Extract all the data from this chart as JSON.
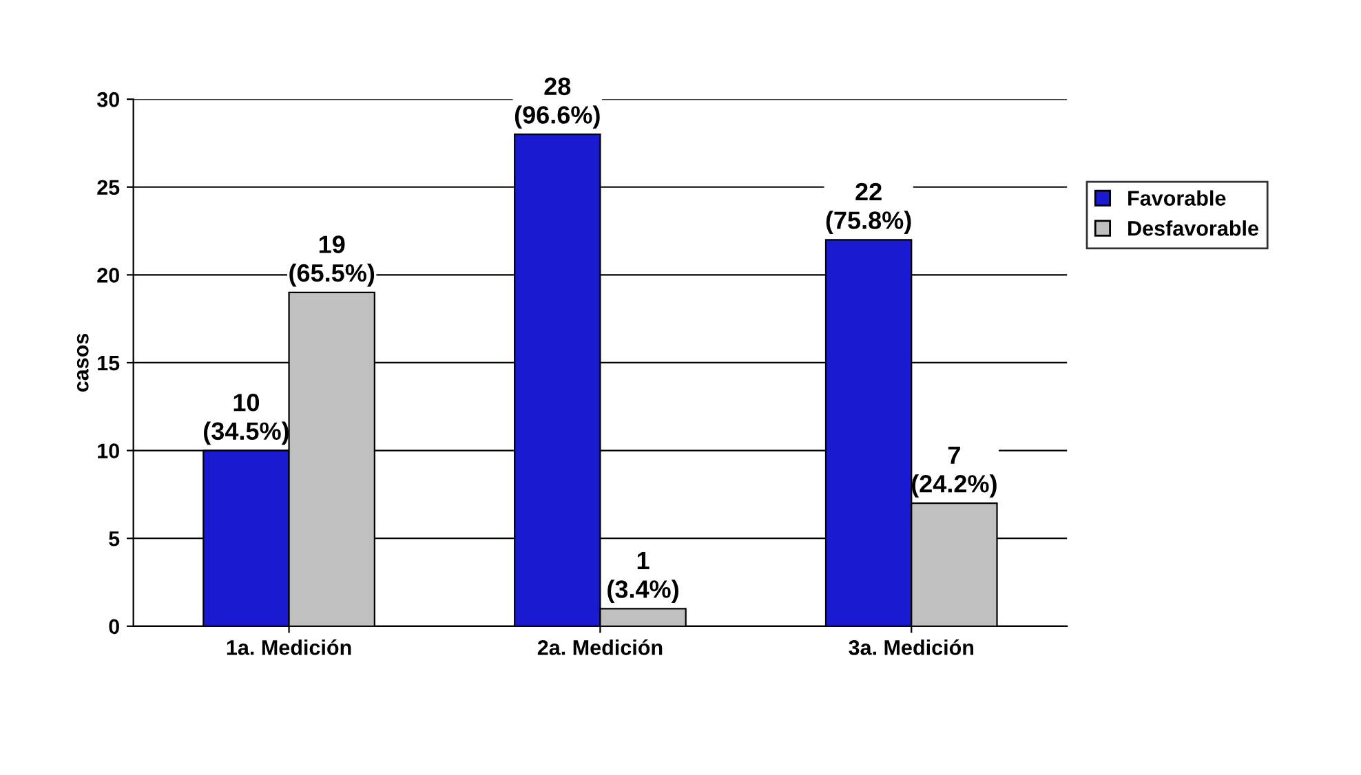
{
  "chart_data": {
    "type": "bar",
    "ylabel": "casos",
    "categories": [
      "1a. Medición",
      "2a. Medición",
      "3a. Medición"
    ],
    "series": [
      {
        "name": "Favorable",
        "color": "#1a1ad0",
        "values": [
          10,
          28,
          22
        ],
        "value_labels": [
          "10\n(34.5%)",
          "28\n(96.6%)",
          "22\n(75.8%)"
        ]
      },
      {
        "name": "Desfavorable",
        "color": "#c0c0c0",
        "values": [
          19,
          1,
          7
        ],
        "value_labels": [
          "19\n(65.5%)",
          "1\n(3.4%)",
          "7\n(24.2%)"
        ]
      }
    ],
    "ylim": [
      0,
      30
    ],
    "yticks": [
      0,
      5,
      10,
      15,
      20,
      25,
      30
    ],
    "grid": "y",
    "legend": "right"
  }
}
